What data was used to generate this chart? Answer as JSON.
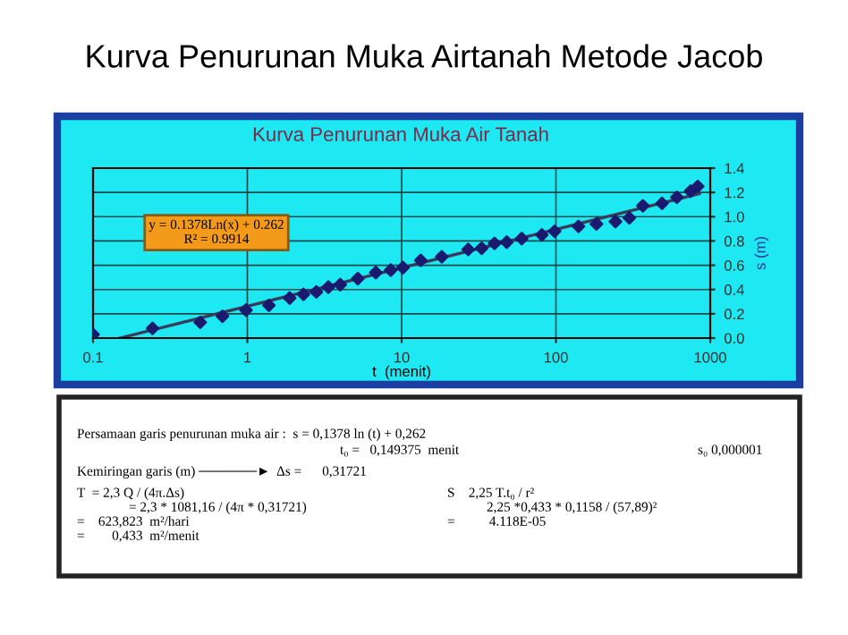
{
  "chart_data": {
    "type": "scatter",
    "title": "Kurva Penurunan Muka Airtanah Metode Jacob",
    "subtitle": "Kurva Penurunan Muka Air Tanah",
    "xlabel": "t  (menit)",
    "ylabel": "s (m)",
    "series": [
      {
        "color": "#1a1a6e",
        "marker": "diamond",
        "x": [
          0.1,
          0.243,
          0.495,
          0.69,
          0.98,
          1.38,
          1.88,
          2.31,
          2.8,
          3.35,
          4.0,
          5.2,
          6.8,
          8.5,
          10.2,
          13.3,
          18.2,
          27,
          33,
          40,
          48,
          60,
          81,
          98,
          140,
          183,
          243,
          299,
          366,
          487,
          608,
          746,
          830
        ],
        "values": [
          0.03,
          0.08,
          0.13,
          0.18,
          0.23,
          0.27,
          0.33,
          0.36,
          0.38,
          0.42,
          0.44,
          0.49,
          0.54,
          0.56,
          0.58,
          0.64,
          0.67,
          0.73,
          0.74,
          0.78,
          0.79,
          0.82,
          0.85,
          0.88,
          0.92,
          0.94,
          0.96,
          0.99,
          1.09,
          1.11,
          1.16,
          1.21,
          1.25
        ]
      },
      {
        "type": "line",
        "color": "#3a3a5a",
        "marker": "none",
        "line_style": "solid",
        "x": [
          0.149,
          850
        ],
        "values": [
          0.0,
          1.19
        ]
      }
    ],
    "log": "x",
    "xlim": [
      0.1,
      1000
    ],
    "xticks": [
      0.1,
      1,
      10,
      100,
      1000
    ],
    "ylim": [
      0,
      1.4
    ],
    "yticks": [
      {
        "value": 0,
        "label": "0.0"
      },
      {
        "value": 0.2,
        "label": "0.2"
      },
      {
        "value": 0.4,
        "label": "0.4"
      },
      {
        "value": 0.6,
        "label": "0.6"
      },
      {
        "value": 0.8,
        "label": "0.8"
      },
      {
        "value": 1.0,
        "label": "1.0"
      },
      {
        "value": 1.2,
        "label": "1.2"
      },
      {
        "value": 1.4,
        "label": "1.4"
      }
    ],
    "grid": true,
    "legend": false,
    "annotations": [
      "y = 0.1378Ln(x) + 0.262\nR² = 0.9914",
      "Persamaan garis penurunan muka air :  s = 0,1378 ln (t) + 0,262",
      "t₀ =   0,149375  menit",
      "s₀ 0,000001",
      "Kemiringan garis (m) ──────►  Δs =      0,31721",
      "T  = 2,3 Q / (4π.Δs)",
      "= 2,3 * 1081,16 / (4π * 0,31721)",
      "=    623,823  m²/hari",
      "=        0,433  m²/menit",
      "S    2,25 T.t₀ / r²",
      "2,25 *0,433 * 0,1158 / (57,89)²",
      "=          4.118E-05"
    ]
  }
}
